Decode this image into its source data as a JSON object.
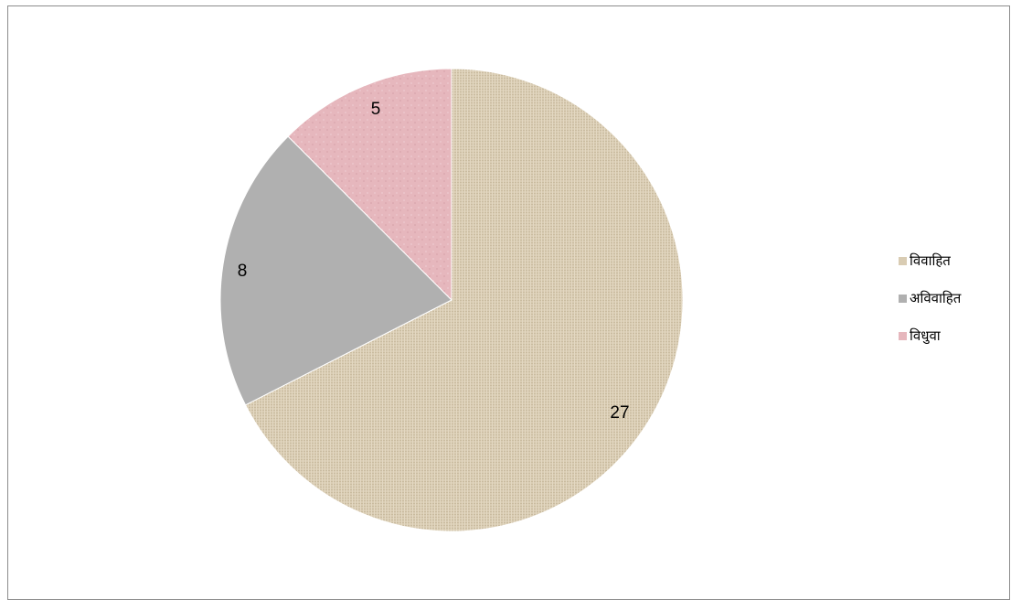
{
  "chart_data": {
    "type": "pie",
    "categories": [
      "विवाहित",
      "अविवाहित",
      "विधुवा"
    ],
    "values": [
      27,
      8,
      5
    ],
    "data_labels": [
      "27",
      "8",
      "5"
    ],
    "colors": [
      "#d9ccb3",
      "#b0b0b0",
      "#e6b7bd"
    ],
    "title": "",
    "legend_position": "right"
  }
}
